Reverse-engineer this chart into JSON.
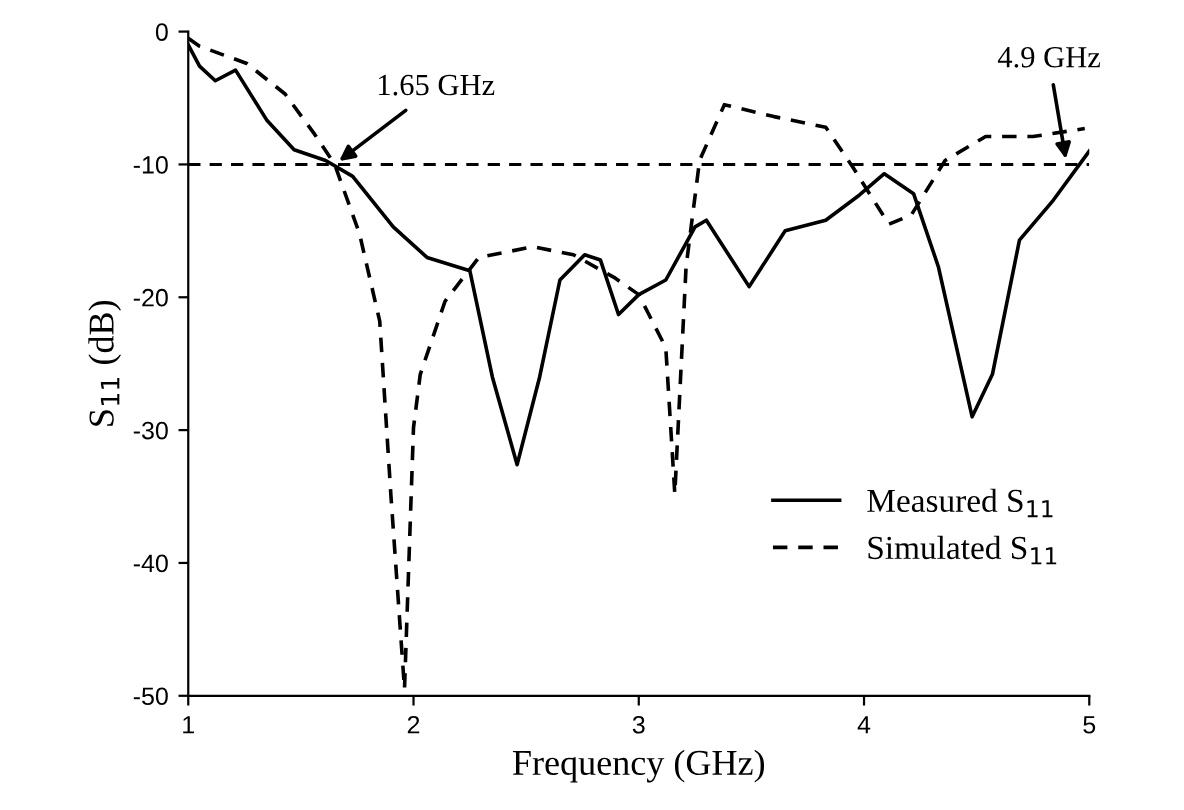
{
  "chart_data": {
    "type": "line",
    "xlabel": "Frequency (GHz)",
    "ylabel": "S$_{11}$ (dB)",
    "xlim": [
      1,
      5
    ],
    "ylim": [
      -50,
      0
    ],
    "xticks": [
      1,
      2,
      3,
      4,
      5
    ],
    "yticks": [
      0,
      -10,
      -20,
      -30,
      -40,
      -50
    ],
    "grid": false,
    "legend": "lower right",
    "marker": "none",
    "series": [
      {
        "name": "Measured S$_{11}$",
        "color": "#000000",
        "line_style": "solid",
        "x": [
          1.0,
          1.05,
          1.12,
          1.21,
          1.35,
          1.47,
          1.61,
          1.73,
          1.91,
          2.06,
          2.25,
          2.35,
          2.46,
          2.56,
          2.65,
          2.76,
          2.83,
          2.91,
          3.0,
          3.12,
          3.25,
          3.3,
          3.49,
          3.65,
          3.83,
          3.98,
          4.09,
          4.22,
          4.33,
          4.48,
          4.57,
          4.69,
          4.84,
          5.0
        ],
        "values": [
          -1,
          -2.6,
          -3.7,
          -2.9,
          -6.7,
          -8.9,
          -9.7,
          -10.9,
          -14.7,
          -17,
          -18,
          -26,
          -32.6,
          -26,
          -18.7,
          -16.8,
          -17.2,
          -21.3,
          -19.8,
          -18.7,
          -14.7,
          -14.2,
          -19.2,
          -15,
          -14.2,
          -12.3,
          -10.7,
          -12.2,
          -17.7,
          -29,
          -25.8,
          -15.7,
          -12.7,
          -9
        ]
      },
      {
        "name": "Simulated S$_{11}$",
        "color": "#000000",
        "line_style": "dashed",
        "x": [
          1.0,
          1.05,
          1.26,
          1.43,
          1.56,
          1.65,
          1.76,
          1.85,
          1.9,
          1.96,
          2.0,
          2.03,
          2.14,
          2.29,
          2.53,
          2.71,
          2.89,
          3.0,
          3.12,
          3.16,
          3.21,
          3.27,
          3.38,
          3.6,
          3.83,
          3.95,
          4.11,
          4.21,
          4.36,
          4.54,
          4.75,
          4.98
        ],
        "values": [
          -0.5,
          -1.1,
          -2.4,
          -4.7,
          -7.7,
          -10,
          -15.2,
          -21.8,
          -35,
          -49.5,
          -29.8,
          -25.8,
          -20.3,
          -17,
          -16.2,
          -16.8,
          -18.5,
          -19.8,
          -23.8,
          -34.8,
          -17.7,
          -9.7,
          -5.5,
          -6.4,
          -7.2,
          -10.2,
          -14.5,
          -13.8,
          -9.7,
          -7.9,
          -7.9,
          -7.3
        ]
      }
    ],
    "ref_lines": [
      {
        "axis": "y",
        "value": -10,
        "color": "#000000",
        "line_style": "dashed"
      }
    ],
    "annotations": [
      {
        "text": "1.65 GHz",
        "x": 1.65,
        "y": -10
      },
      {
        "text": "4.9 GHz",
        "x": 4.9,
        "y": -10
      }
    ]
  }
}
